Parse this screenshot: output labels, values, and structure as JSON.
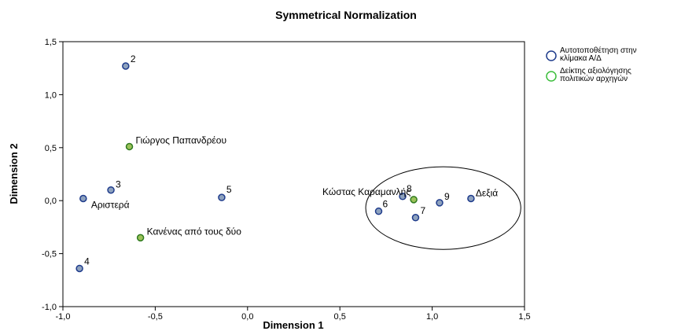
{
  "chart_data": {
    "type": "scatter",
    "title": "Symmetrical Normalization",
    "xlabel": "Dimension 1",
    "ylabel": "Dimension 2",
    "xlim": [
      -1.0,
      1.5
    ],
    "ylim": [
      -1.0,
      1.5
    ],
    "x_ticks": [
      "-1,0",
      "-0,5",
      "0,0",
      "0,5",
      "1,0",
      "1,5"
    ],
    "y_ticks": [
      "-1,0",
      "-0,5",
      "0,0",
      "0,5",
      "1,0",
      "1,5"
    ],
    "grid": false,
    "legend_position": "top-right",
    "series": [
      {
        "name": "Αυτοτοποθέτηση στην κλίμακα Α/Δ",
        "legend_lines": [
          "Αυτοτοποθέτηση στην",
          "κλίμακα Α/Δ"
        ],
        "marker_fill": "#8ea2be",
        "marker_edge": "#1f3c8c",
        "legend_color": "#1f3c8c",
        "points": [
          {
            "label": "2",
            "x": -0.66,
            "y": 1.27
          },
          {
            "label": "3",
            "x": -0.74,
            "y": 0.1
          },
          {
            "label": "Αριστερά",
            "x": -0.89,
            "y": 0.02
          },
          {
            "label": "5",
            "x": -0.14,
            "y": 0.03
          },
          {
            "label": "4",
            "x": -0.91,
            "y": -0.64
          },
          {
            "label": "8",
            "x": 0.84,
            "y": 0.04
          },
          {
            "label": "9",
            "x": 1.04,
            "y": -0.02
          },
          {
            "label": "Δεξιά",
            "x": 1.21,
            "y": 0.02
          },
          {
            "label": "6",
            "x": 0.71,
            "y": -0.1
          },
          {
            "label": "7",
            "x": 0.91,
            "y": -0.16
          }
        ]
      },
      {
        "name": "Δείκτης αξιολόγησης πολιτικών αρχηγών",
        "legend_lines": [
          "Δείκτης αξιολόγησης",
          "πολιτικών αρχηγών"
        ],
        "marker_fill": "#9bc25a",
        "marker_edge": "#2f7a1f",
        "legend_color": "#3cbe3c",
        "points": [
          {
            "label": "Γιώργος Παπανδρέου",
            "x": -0.64,
            "y": 0.51
          },
          {
            "label": "Κανένας από τους δύο",
            "x": -0.58,
            "y": -0.35
          },
          {
            "label": "Κώστας Καραμανλής",
            "x": 0.9,
            "y": 0.01
          }
        ]
      }
    ],
    "annotations": [
      {
        "type": "ellipse",
        "cx": 1.06,
        "cy": -0.07,
        "rx": 0.42,
        "ry": 0.39
      }
    ]
  }
}
